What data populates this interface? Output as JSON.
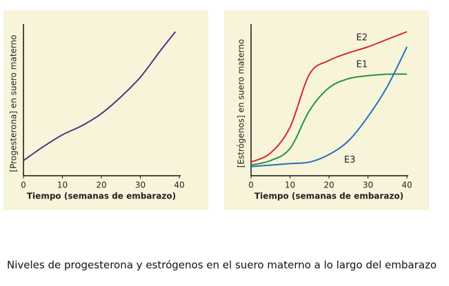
{
  "chart_data": [
    {
      "type": "line",
      "ylabel": "[Progesterona] en suero materno",
      "xlabel": "Tiempo (semanas de embarazo)",
      "x": [
        0,
        5,
        10,
        15,
        20,
        25,
        30,
        35,
        39
      ],
      "values": [
        10,
        19,
        27,
        33,
        41,
        52,
        65,
        82,
        95
      ],
      "color": "#5b2c83",
      "xlim": [
        0,
        40
      ],
      "xticks": [
        0,
        10,
        20,
        30,
        40
      ],
      "ylim": [
        0,
        100
      ]
    },
    {
      "type": "line",
      "ylabel": "[Estrógenos] en suero materno",
      "xlabel": "Tiempo (semanas de embarazo)",
      "x": [
        0,
        5,
        10,
        15,
        20,
        25,
        30,
        35,
        40
      ],
      "series": [
        {
          "name": "E2",
          "color": "#d7262b",
          "values": [
            9,
            15,
            32,
            67,
            76,
            81,
            85,
            90,
            95
          ]
        },
        {
          "name": "E1",
          "color": "#1f9444",
          "values": [
            7,
            10,
            18,
            43,
            58,
            64,
            66,
            67,
            67
          ]
        },
        {
          "name": "E3",
          "color": "#1f72b8",
          "values": [
            6,
            7,
            8,
            9,
            14,
            23,
            39,
            59,
            85
          ]
        }
      ],
      "xlim": [
        0,
        40
      ],
      "xticks": [
        0,
        10,
        20,
        30,
        40
      ],
      "ylim": [
        0,
        100
      ]
    }
  ],
  "caption": "Niveles de progesterona y estrógenos en el suero materno a lo largo del embarazo"
}
